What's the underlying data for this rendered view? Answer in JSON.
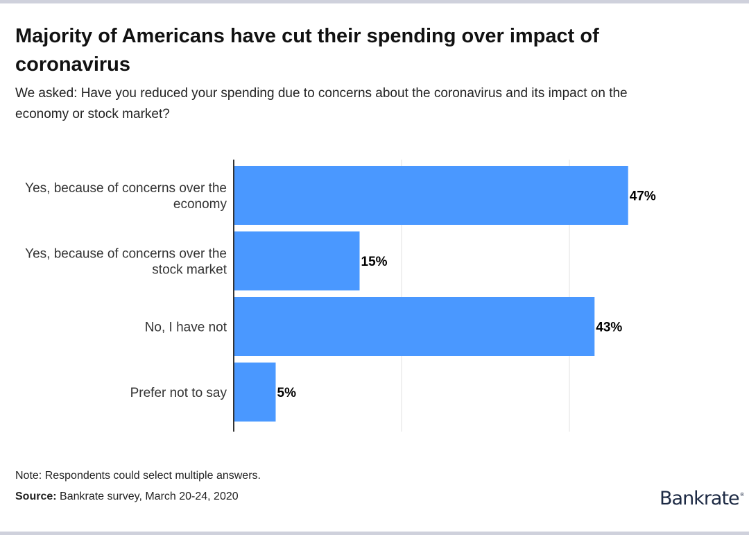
{
  "header": {
    "title": "Majority of Americans have cut their spending over impact of coronavirus",
    "subtitle": "We asked: Have you reduced your spending due to concerns about the coronavirus and its impact on the economy or stock market?"
  },
  "footer": {
    "note": "Note: Respondents could select multiple answers.",
    "source_label": "Source:",
    "source_text": " Bankrate survey, March 20-24, 2020",
    "logo": "Bankrate",
    "logo_mark": "®"
  },
  "colors": {
    "bar": "#4a98ff",
    "axis": "#333333",
    "grid": "#e0e0e0",
    "frame": "#cfd1dc"
  },
  "chart_data": {
    "type": "bar",
    "orientation": "horizontal",
    "title": "Majority of Americans have cut their spending over impact of coronavirus",
    "subtitle": "We asked: Have you reduced your spending due to concerns about the coronavirus and its impact on the economy or stock market?",
    "categories": [
      [
        "Yes, because of concerns over the",
        "economy"
      ],
      [
        "Yes, because of concerns over the",
        "stock market"
      ],
      [
        "No, I have not"
      ],
      [
        "Prefer not to say"
      ]
    ],
    "values": [
      47,
      15,
      43,
      5
    ],
    "value_labels": [
      "47%",
      "15%",
      "43%",
      "5%"
    ],
    "xlabel": "",
    "ylabel": "",
    "xlim": [
      0,
      60
    ],
    "gridlines_at": [
      20,
      40
    ],
    "grid": true,
    "legend": "none",
    "unit": "%"
  }
}
